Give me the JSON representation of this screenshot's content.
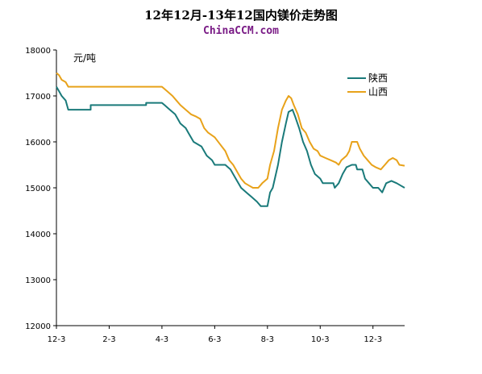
{
  "title": "12年12月-13年12国内镁价走势图",
  "subtitle": "ChinaCCM.com",
  "colors": {
    "shaanxi": "#1a7a7a",
    "shanxi": "#e8a21a"
  },
  "chart_data": {
    "type": "line",
    "title": "12年12月-13年12国内镁价走势图",
    "ylabel": "元/吨",
    "ylim": [
      12000,
      18000
    ],
    "yticks": [
      12000,
      13000,
      14000,
      15000,
      16000,
      17000,
      18000
    ],
    "xlim": [
      0,
      13.2
    ],
    "xticks": [
      {
        "x": 0,
        "label": "12-3"
      },
      {
        "x": 2,
        "label": "2-3"
      },
      {
        "x": 4,
        "label": "4-3"
      },
      {
        "x": 6,
        "label": "6-3"
      },
      {
        "x": 8,
        "label": "8-3"
      },
      {
        "x": 10,
        "label": "10-3"
      },
      {
        "x": 12,
        "label": "12-3"
      }
    ],
    "grid": false,
    "legend": "top-right",
    "series": [
      {
        "name": "陕西",
        "color": "#1a7a7a",
        "points": [
          [
            0,
            17200
          ],
          [
            0.1,
            17100
          ],
          [
            0.2,
            17000
          ],
          [
            0.35,
            16900
          ],
          [
            0.45,
            16700
          ],
          [
            1.0,
            16700
          ],
          [
            1.3,
            16700
          ],
          [
            1.3,
            16800
          ],
          [
            2.0,
            16800
          ],
          [
            3.0,
            16800
          ],
          [
            3.4,
            16800
          ],
          [
            3.4,
            16850
          ],
          [
            4.0,
            16850
          ],
          [
            4.1,
            16800
          ],
          [
            4.3,
            16700
          ],
          [
            4.5,
            16600
          ],
          [
            4.7,
            16400
          ],
          [
            4.9,
            16300
          ],
          [
            5.0,
            16200
          ],
          [
            5.2,
            16000
          ],
          [
            5.5,
            15900
          ],
          [
            5.7,
            15700
          ],
          [
            5.9,
            15600
          ],
          [
            6.0,
            15500
          ],
          [
            6.4,
            15500
          ],
          [
            6.6,
            15400
          ],
          [
            6.8,
            15200
          ],
          [
            7.0,
            15000
          ],
          [
            7.2,
            14900
          ],
          [
            7.4,
            14800
          ],
          [
            7.6,
            14700
          ],
          [
            7.75,
            14600
          ],
          [
            8.0,
            14600
          ],
          [
            8.1,
            14900
          ],
          [
            8.2,
            15000
          ],
          [
            8.4,
            15500
          ],
          [
            8.55,
            16000
          ],
          [
            8.7,
            16400
          ],
          [
            8.8,
            16650
          ],
          [
            8.95,
            16700
          ],
          [
            9.05,
            16550
          ],
          [
            9.2,
            16300
          ],
          [
            9.35,
            16000
          ],
          [
            9.5,
            15800
          ],
          [
            9.65,
            15500
          ],
          [
            9.8,
            15300
          ],
          [
            10.0,
            15200
          ],
          [
            10.1,
            15100
          ],
          [
            10.5,
            15100
          ],
          [
            10.55,
            15000
          ],
          [
            10.7,
            15100
          ],
          [
            10.85,
            15300
          ],
          [
            11.0,
            15450
          ],
          [
            11.2,
            15500
          ],
          [
            11.35,
            15500
          ],
          [
            11.4,
            15400
          ],
          [
            11.6,
            15400
          ],
          [
            11.7,
            15200
          ],
          [
            11.85,
            15100
          ],
          [
            12.0,
            15000
          ],
          [
            12.2,
            15000
          ],
          [
            12.35,
            14900
          ],
          [
            12.5,
            15100
          ],
          [
            12.7,
            15150
          ],
          [
            12.9,
            15100
          ],
          [
            13.05,
            15050
          ],
          [
            13.2,
            15000
          ]
        ]
      },
      {
        "name": "山西",
        "color": "#e8a21a",
        "points": [
          [
            0,
            17500
          ],
          [
            0.1,
            17450
          ],
          [
            0.2,
            17350
          ],
          [
            0.35,
            17300
          ],
          [
            0.45,
            17200
          ],
          [
            1.0,
            17200
          ],
          [
            2.0,
            17200
          ],
          [
            3.0,
            17200
          ],
          [
            4.0,
            17200
          ],
          [
            4.2,
            17100
          ],
          [
            4.4,
            17000
          ],
          [
            4.55,
            16900
          ],
          [
            4.7,
            16800
          ],
          [
            4.9,
            16700
          ],
          [
            5.1,
            16600
          ],
          [
            5.3,
            16550
          ],
          [
            5.45,
            16500
          ],
          [
            5.6,
            16300
          ],
          [
            5.75,
            16200
          ],
          [
            6.0,
            16100
          ],
          [
            6.2,
            15950
          ],
          [
            6.4,
            15800
          ],
          [
            6.55,
            15600
          ],
          [
            6.7,
            15500
          ],
          [
            6.9,
            15300
          ],
          [
            7.0,
            15200
          ],
          [
            7.15,
            15100
          ],
          [
            7.3,
            15050
          ],
          [
            7.45,
            15000
          ],
          [
            7.65,
            15000
          ],
          [
            7.8,
            15100
          ],
          [
            8.0,
            15200
          ],
          [
            8.1,
            15500
          ],
          [
            8.25,
            15800
          ],
          [
            8.4,
            16300
          ],
          [
            8.55,
            16700
          ],
          [
            8.7,
            16900
          ],
          [
            8.8,
            17000
          ],
          [
            8.9,
            16950
          ],
          [
            9.0,
            16800
          ],
          [
            9.15,
            16600
          ],
          [
            9.3,
            16300
          ],
          [
            9.45,
            16200
          ],
          [
            9.6,
            16000
          ],
          [
            9.75,
            15850
          ],
          [
            9.9,
            15800
          ],
          [
            10.0,
            15700
          ],
          [
            10.2,
            15650
          ],
          [
            10.4,
            15600
          ],
          [
            10.6,
            15550
          ],
          [
            10.7,
            15500
          ],
          [
            10.8,
            15600
          ],
          [
            11.0,
            15700
          ],
          [
            11.1,
            15800
          ],
          [
            11.2,
            16000
          ],
          [
            11.4,
            16000
          ],
          [
            11.5,
            15850
          ],
          [
            11.65,
            15700
          ],
          [
            11.8,
            15600
          ],
          [
            11.95,
            15500
          ],
          [
            12.1,
            15450
          ],
          [
            12.3,
            15400
          ],
          [
            12.45,
            15500
          ],
          [
            12.6,
            15600
          ],
          [
            12.75,
            15650
          ],
          [
            12.9,
            15600
          ],
          [
            13.0,
            15500
          ],
          [
            13.2,
            15480
          ]
        ]
      }
    ]
  }
}
